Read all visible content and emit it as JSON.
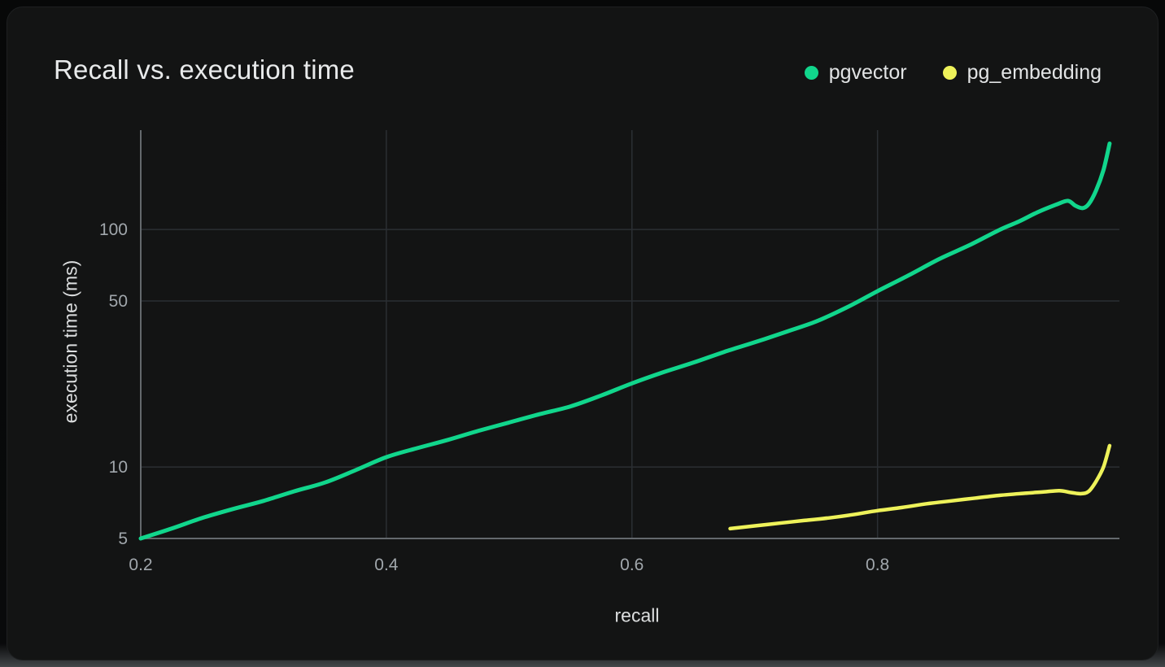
{
  "card": {
    "title": "Recall vs. execution time"
  },
  "legend": [
    {
      "label": "pgvector",
      "color": "#11d68c"
    },
    {
      "label": "pg_embedding",
      "color": "#eef25a"
    }
  ],
  "colors": {
    "page_bg": "#090a0b",
    "card_bg": "#131414",
    "title": "#e8eaeb",
    "grid": "#2b2f33",
    "axis": "#64696d",
    "tick_label": "#a1a7ac",
    "axis_title": "#dcdedf",
    "pgvector": "#11d68c",
    "pg_embedding": "#eef25a"
  },
  "chart_data": {
    "type": "line",
    "title": "Recall vs. execution time",
    "xlabel": "recall",
    "ylabel": "execution time (ms)",
    "y_scale": "log",
    "grid": true,
    "legend_position": "top-right",
    "xlim": [
      0.2,
      0.997
    ],
    "ylim": [
      5,
      262
    ],
    "x_ticks": [
      0.2,
      0.4,
      0.6,
      0.8
    ],
    "x_tick_labels": [
      "0.2",
      "0.4",
      "0.6",
      "0.8"
    ],
    "y_ticks": [
      5,
      10,
      50,
      100
    ],
    "y_tick_labels": [
      "5",
      "10",
      "50",
      "100"
    ],
    "series": [
      {
        "name": "pgvector",
        "color": "#11d68c",
        "points": [
          [
            0.2,
            5.0
          ],
          [
            0.225,
            5.5
          ],
          [
            0.25,
            6.1
          ],
          [
            0.275,
            6.65
          ],
          [
            0.3,
            7.2
          ],
          [
            0.325,
            7.9
          ],
          [
            0.35,
            8.6
          ],
          [
            0.375,
            9.7
          ],
          [
            0.4,
            11.0
          ],
          [
            0.425,
            12.0
          ],
          [
            0.45,
            13.0
          ],
          [
            0.475,
            14.2
          ],
          [
            0.5,
            15.4
          ],
          [
            0.525,
            16.7
          ],
          [
            0.55,
            18.0
          ],
          [
            0.575,
            20.0
          ],
          [
            0.6,
            22.5
          ],
          [
            0.625,
            25.0
          ],
          [
            0.65,
            27.5
          ],
          [
            0.675,
            30.5
          ],
          [
            0.7,
            33.5
          ],
          [
            0.725,
            37.0
          ],
          [
            0.75,
            41.0
          ],
          [
            0.775,
            47.0
          ],
          [
            0.8,
            55.0
          ],
          [
            0.825,
            64.0
          ],
          [
            0.85,
            75.0
          ],
          [
            0.875,
            86.0
          ],
          [
            0.9,
            100.0
          ],
          [
            0.915,
            108.0
          ],
          [
            0.93,
            118.0
          ],
          [
            0.945,
            127.0
          ],
          [
            0.955,
            132.0
          ],
          [
            0.961,
            126.0
          ],
          [
            0.967,
            123.0
          ],
          [
            0.972,
            128.0
          ],
          [
            0.978,
            146.0
          ],
          [
            0.984,
            178.0
          ],
          [
            0.989,
            230.0
          ]
        ]
      },
      {
        "name": "pg_embedding",
        "color": "#eef25a",
        "points": [
          [
            0.68,
            5.5
          ],
          [
            0.7,
            5.65
          ],
          [
            0.72,
            5.8
          ],
          [
            0.74,
            5.95
          ],
          [
            0.76,
            6.1
          ],
          [
            0.78,
            6.3
          ],
          [
            0.8,
            6.55
          ],
          [
            0.82,
            6.75
          ],
          [
            0.84,
            7.0
          ],
          [
            0.86,
            7.2
          ],
          [
            0.88,
            7.4
          ],
          [
            0.9,
            7.6
          ],
          [
            0.92,
            7.75
          ],
          [
            0.935,
            7.85
          ],
          [
            0.948,
            7.95
          ],
          [
            0.958,
            7.8
          ],
          [
            0.966,
            7.72
          ],
          [
            0.972,
            7.9
          ],
          [
            0.978,
            8.7
          ],
          [
            0.984,
            10.0
          ],
          [
            0.989,
            12.3
          ]
        ]
      }
    ]
  }
}
